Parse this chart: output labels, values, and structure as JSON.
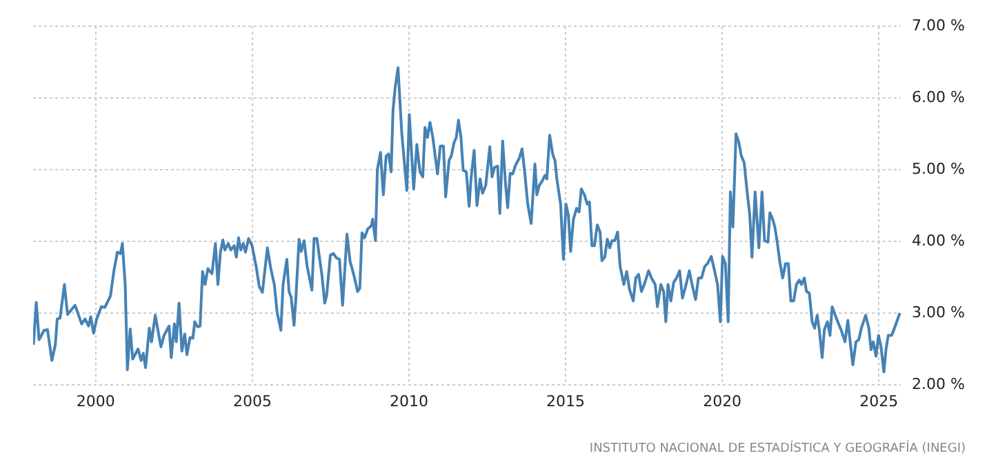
{
  "chart_data": {
    "type": "line",
    "annotations": [
      "INSTITUTO NACIONAL DE ESTADÍSTICA Y GEOGRAFÍA (INEGI)"
    ],
    "xlim": [
      1998.0,
      2025.7
    ],
    "xticks": [
      2000,
      2005,
      2010,
      2015,
      2020,
      2025
    ],
    "ylim": [
      2,
      7
    ],
    "yticks": [
      {
        "value": 2,
        "label": "2.00 %"
      },
      {
        "value": 3,
        "label": "3.00 %"
      },
      {
        "value": 4,
        "label": "4.00 %"
      },
      {
        "value": 5,
        "label": "5.00 %"
      },
      {
        "value": 6,
        "label": "6.00 %"
      },
      {
        "value": 7,
        "label": "7.00 %"
      }
    ],
    "grid": true,
    "legend": false,
    "marker": "none",
    "line_style": "solid",
    "series": [
      {
        "color": "#4682b4",
        "x": [
          1998.01,
          1998.1,
          1998.19,
          1998.35,
          1998.46,
          1998.6,
          1998.71,
          1998.77,
          1998.86,
          1999.0,
          1999.1,
          1999.34,
          1999.55,
          1999.66,
          1999.77,
          1999.84,
          1999.93,
          2000.03,
          2000.18,
          2000.29,
          2000.47,
          2000.58,
          2000.69,
          2000.79,
          2000.85,
          2000.94,
          2001.01,
          2001.1,
          2001.18,
          2001.35,
          2001.45,
          2001.52,
          2001.59,
          2001.71,
          2001.78,
          2001.9,
          2002.08,
          2002.18,
          2002.34,
          2002.41,
          2002.51,
          2002.57,
          2002.66,
          2002.75,
          2002.84,
          2002.91,
          2003.01,
          2003.1,
          2003.16,
          2003.25,
          2003.33,
          2003.41,
          2003.49,
          2003.58,
          2003.71,
          2003.82,
          2003.9,
          2003.98,
          2004.06,
          2004.12,
          2004.23,
          2004.31,
          2004.42,
          2004.49,
          2004.56,
          2004.63,
          2004.71,
          2004.78,
          2004.88,
          2004.99,
          2005.12,
          2005.22,
          2005.32,
          2005.48,
          2005.58,
          2005.7,
          2005.79,
          2005.91,
          2005.98,
          2006.1,
          2006.17,
          2006.24,
          2006.33,
          2006.39,
          2006.49,
          2006.56,
          2006.65,
          2006.75,
          2006.9,
          2006.97,
          2007.06,
          2007.15,
          2007.22,
          2007.31,
          2007.37,
          2007.49,
          2007.59,
          2007.68,
          2007.78,
          2007.88,
          2008.02,
          2008.12,
          2008.24,
          2008.36,
          2008.43,
          2008.5,
          2008.58,
          2008.68,
          2008.8,
          2008.84,
          2008.93,
          2008.99,
          2009.09,
          2009.18,
          2009.27,
          2009.35,
          2009.43,
          2009.49,
          2009.56,
          2009.65,
          2009.77,
          2009.93,
          2010.01,
          2010.15,
          2010.25,
          2010.35,
          2010.44,
          2010.51,
          2010.59,
          2010.67,
          2010.76,
          2010.91,
          2011.0,
          2011.1,
          2011.17,
          2011.28,
          2011.35,
          2011.44,
          2011.51,
          2011.58,
          2011.66,
          2011.73,
          2011.83,
          2011.92,
          2011.98,
          2012.08,
          2012.17,
          2012.27,
          2012.35,
          2012.45,
          2012.58,
          2012.65,
          2012.73,
          2012.83,
          2012.9,
          2012.99,
          2013.08,
          2013.15,
          2013.23,
          2013.31,
          2013.4,
          2013.52,
          2013.61,
          2013.7,
          2013.79,
          2013.9,
          2014.02,
          2014.08,
          2014.16,
          2014.25,
          2014.34,
          2014.4,
          2014.49,
          2014.59,
          2014.66,
          2014.72,
          2014.84,
          2014.93,
          2015.01,
          2015.09,
          2015.16,
          2015.25,
          2015.35,
          2015.43,
          2015.5,
          2015.6,
          2015.69,
          2015.76,
          2015.84,
          2015.92,
          2016.01,
          2016.1,
          2016.16,
          2016.25,
          2016.33,
          2016.41,
          2016.48,
          2016.57,
          2016.66,
          2016.74,
          2016.86,
          2016.95,
          2017.04,
          2017.16,
          2017.24,
          2017.33,
          2017.42,
          2017.51,
          2017.65,
          2017.74,
          2017.86,
          2017.93,
          2018.04,
          2018.13,
          2018.2,
          2018.27,
          2018.36,
          2018.45,
          2018.54,
          2018.64,
          2018.73,
          2018.83,
          2018.95,
          2019.05,
          2019.15,
          2019.24,
          2019.34,
          2019.44,
          2019.53,
          2019.65,
          2019.74,
          2019.85,
          2019.94,
          2020.01,
          2020.1,
          2020.19,
          2020.26,
          2020.34,
          2020.44,
          2020.53,
          2020.61,
          2020.7,
          2020.79,
          2020.88,
          2020.95,
          2021.05,
          2021.17,
          2021.27,
          2021.35,
          2021.46,
          2021.52,
          2021.61,
          2021.68,
          2021.75,
          2021.84,
          2021.93,
          2022.02,
          2022.11,
          2022.19,
          2022.28,
          2022.37,
          2022.46,
          2022.53,
          2022.62,
          2022.69,
          2022.78,
          2022.87,
          2022.95,
          2023.03,
          2023.1,
          2023.19,
          2023.26,
          2023.36,
          2023.44,
          2023.51,
          2023.65,
          2023.8,
          2023.92,
          2024.01,
          2024.09,
          2024.17,
          2024.27,
          2024.36,
          2024.44,
          2024.58,
          2024.68,
          2024.75,
          2024.82,
          2024.91,
          2024.99,
          2025.07,
          2025.16,
          2025.23,
          2025.3,
          2025.41,
          2025.53,
          2025.67
        ],
        "values": [
          2.56,
          3.15,
          2.63,
          2.76,
          2.77,
          2.34,
          2.56,
          2.92,
          2.93,
          3.4,
          2.98,
          3.11,
          2.85,
          2.92,
          2.82,
          2.95,
          2.72,
          2.92,
          3.09,
          3.08,
          3.24,
          3.59,
          3.85,
          3.83,
          3.97,
          3.4,
          2.21,
          2.78,
          2.36,
          2.5,
          2.34,
          2.44,
          2.24,
          2.79,
          2.6,
          2.97,
          2.53,
          2.69,
          2.82,
          2.38,
          2.85,
          2.6,
          3.14,
          2.47,
          2.71,
          2.42,
          2.66,
          2.65,
          2.88,
          2.81,
          2.82,
          3.58,
          3.4,
          3.62,
          3.55,
          3.97,
          3.4,
          3.85,
          4.02,
          3.88,
          3.97,
          3.88,
          3.94,
          3.78,
          4.05,
          3.88,
          3.97,
          3.85,
          4.04,
          3.94,
          3.65,
          3.37,
          3.29,
          3.91,
          3.64,
          3.4,
          3.01,
          2.76,
          3.4,
          3.75,
          3.3,
          3.22,
          2.83,
          3.21,
          4.03,
          3.86,
          4.01,
          3.65,
          3.32,
          4.04,
          4.04,
          3.75,
          3.53,
          3.14,
          3.24,
          3.81,
          3.83,
          3.77,
          3.75,
          3.11,
          4.1,
          3.72,
          3.53,
          3.3,
          3.35,
          4.12,
          4.05,
          4.17,
          4.22,
          4.31,
          4.01,
          5.0,
          5.24,
          4.65,
          5.19,
          5.22,
          4.97,
          5.83,
          6.15,
          6.42,
          5.51,
          4.71,
          5.77,
          4.73,
          5.35,
          4.97,
          4.9,
          5.59,
          5.45,
          5.66,
          5.45,
          4.94,
          5.33,
          5.33,
          4.62,
          5.13,
          5.19,
          5.38,
          5.45,
          5.69,
          5.45,
          4.99,
          4.97,
          4.49,
          4.87,
          5.27,
          4.5,
          4.87,
          4.67,
          4.78,
          5.32,
          4.9,
          5.03,
          5.05,
          4.39,
          5.4,
          4.81,
          4.47,
          4.95,
          4.94,
          5.06,
          5.16,
          5.29,
          4.94,
          4.52,
          4.25,
          5.08,
          4.65,
          4.78,
          4.84,
          4.92,
          4.87,
          5.48,
          5.21,
          5.13,
          4.87,
          4.52,
          3.75,
          4.52,
          4.36,
          3.86,
          4.31,
          4.46,
          4.41,
          4.73,
          4.65,
          4.52,
          4.55,
          3.94,
          3.94,
          4.23,
          4.13,
          3.73,
          3.78,
          4.03,
          3.91,
          4.01,
          4.01,
          4.13,
          3.65,
          3.4,
          3.58,
          3.33,
          3.17,
          3.49,
          3.54,
          3.3,
          3.4,
          3.59,
          3.49,
          3.4,
          3.09,
          3.4,
          3.3,
          2.88,
          3.4,
          3.17,
          3.43,
          3.49,
          3.59,
          3.21,
          3.37,
          3.59,
          3.37,
          3.19,
          3.49,
          3.49,
          3.65,
          3.69,
          3.79,
          3.62,
          3.4,
          2.88,
          3.79,
          3.69,
          2.88,
          4.69,
          4.2,
          5.5,
          5.38,
          5.19,
          5.1,
          4.71,
          4.36,
          3.78,
          4.69,
          3.91,
          4.69,
          4.01,
          3.99,
          4.4,
          4.31,
          4.2,
          4.01,
          3.71,
          3.49,
          3.69,
          3.69,
          3.17,
          3.17,
          3.4,
          3.46,
          3.4,
          3.49,
          3.3,
          3.28,
          2.88,
          2.79,
          2.97,
          2.76,
          2.38,
          2.77,
          2.88,
          2.69,
          3.09,
          2.92,
          2.76,
          2.6,
          2.9,
          2.58,
          2.28,
          2.6,
          2.63,
          2.79,
          2.97,
          2.79,
          2.49,
          2.6,
          2.4,
          2.69,
          2.53,
          2.18,
          2.5,
          2.69,
          2.69,
          2.83,
          3.0
        ]
      }
    ]
  }
}
